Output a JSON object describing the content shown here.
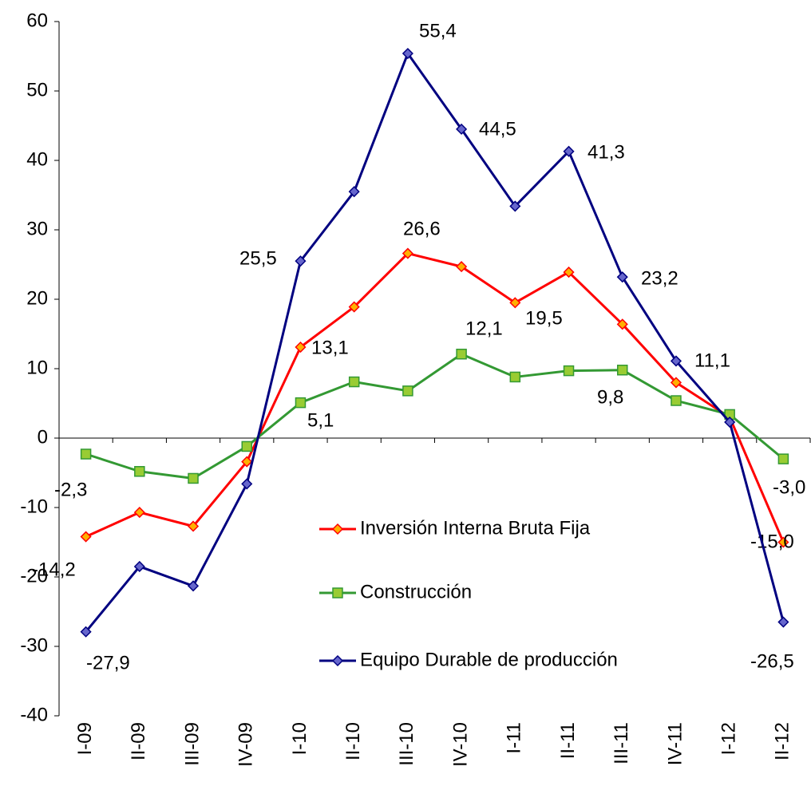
{
  "chart_data": {
    "type": "line",
    "categories": [
      "I-09",
      "II-09",
      "III-09",
      "IV-09",
      "I-10",
      "II-10",
      "III-10",
      "IV-10",
      "I-11",
      "II-11",
      "III-11",
      "IV-11",
      "I-12",
      "II-12"
    ],
    "series": [
      {
        "name": "Inversión Interna Bruta Fija",
        "color": "#ff0000",
        "marker": "diamond",
        "marker_color": "#ffb000",
        "values": [
          -14.2,
          -10.7,
          -12.7,
          -3.4,
          13.1,
          18.9,
          26.6,
          24.7,
          19.5,
          23.9,
          16.4,
          8.0,
          3.0,
          -15.0
        ],
        "value_labels": [
          "-14,2",
          null,
          null,
          null,
          "13,1",
          null,
          "26,6",
          null,
          "19,5",
          null,
          null,
          null,
          null,
          "-15,0"
        ]
      },
      {
        "name": "Construcción",
        "color": "#339933",
        "marker": "square",
        "marker_color": "#99cc33",
        "values": [
          -2.3,
          -4.8,
          -5.8,
          -1.2,
          5.1,
          8.1,
          6.8,
          12.1,
          8.8,
          9.7,
          9.8,
          5.4,
          3.4,
          -3.0
        ],
        "value_labels": [
          "-2,3",
          null,
          null,
          null,
          "5,1",
          null,
          null,
          "12,1",
          null,
          null,
          "9,8",
          null,
          null,
          "-3,0"
        ]
      },
      {
        "name": "Equipo Durable de producción",
        "color": "#000080",
        "marker": "diamond",
        "marker_color": "#6666cc",
        "values": [
          -27.9,
          -18.5,
          -21.3,
          -6.6,
          25.5,
          35.5,
          55.4,
          44.5,
          33.4,
          41.3,
          23.2,
          11.1,
          2.3,
          -26.5
        ],
        "value_labels": [
          "-27,9",
          null,
          null,
          null,
          "25,5",
          null,
          "55,4",
          "44,5",
          null,
          "41,3",
          "23,2",
          "11,1",
          null,
          "-26,5"
        ]
      }
    ],
    "ylim": [
      -40,
      60
    ],
    "yticks": [
      -40,
      -30,
      -20,
      -10,
      0,
      10,
      20,
      30,
      40,
      50,
      60
    ]
  }
}
